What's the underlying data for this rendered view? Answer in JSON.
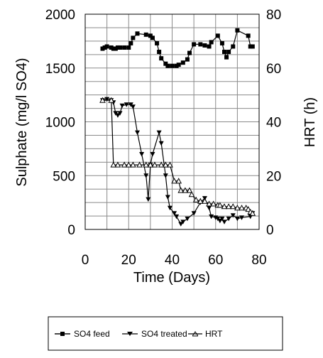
{
  "chart_data": {
    "type": "line",
    "xlabel": "Time (Days)",
    "ylabel": "Sulphate (mg/l SO4)",
    "y2label": "HRT (h)",
    "xlim": [
      0,
      80
    ],
    "ylim": [
      0,
      2000
    ],
    "y2lim": [
      0,
      80
    ],
    "xticks": [
      0,
      20,
      40,
      60,
      80
    ],
    "yticks": [
      0,
      500,
      1000,
      1500,
      2000
    ],
    "y2ticks": [
      0,
      20,
      40,
      60,
      80
    ],
    "grid": true,
    "legend_position": "bottom",
    "series": [
      {
        "name": "SO4 feed",
        "axis": "left",
        "marker": "square",
        "color": "#000000",
        "points": [
          [
            8,
            1680
          ],
          [
            9,
            1690
          ],
          [
            10,
            1700
          ],
          [
            12,
            1690
          ],
          [
            13,
            1680
          ],
          [
            14,
            1680
          ],
          [
            15,
            1690
          ],
          [
            16,
            1690
          ],
          [
            18,
            1690
          ],
          [
            20,
            1690
          ],
          [
            21,
            1730
          ],
          [
            22,
            1780
          ],
          [
            24,
            1820
          ],
          [
            28,
            1810
          ],
          [
            30,
            1800
          ],
          [
            31,
            1780
          ],
          [
            33,
            1730
          ],
          [
            34,
            1650
          ],
          [
            35,
            1590
          ],
          [
            37,
            1540
          ],
          [
            38,
            1520
          ],
          [
            40,
            1520
          ],
          [
            42,
            1520
          ],
          [
            43,
            1530
          ],
          [
            45,
            1550
          ],
          [
            47,
            1580
          ],
          [
            48,
            1640
          ],
          [
            50,
            1720
          ],
          [
            53,
            1720
          ],
          [
            55,
            1710
          ],
          [
            57,
            1700
          ],
          [
            58,
            1740
          ],
          [
            61,
            1800
          ],
          [
            63,
            1730
          ],
          [
            64,
            1650
          ],
          [
            65,
            1600
          ],
          [
            66,
            1650
          ],
          [
            68,
            1700
          ],
          [
            70,
            1850
          ],
          [
            75,
            1800
          ],
          [
            76,
            1700
          ],
          [
            77,
            1700
          ]
        ]
      },
      {
        "name": "SO4 treated",
        "axis": "left",
        "marker": "triangle-down",
        "color": "#000000",
        "points": [
          [
            8,
            1200
          ],
          [
            10,
            1210
          ],
          [
            12,
            1200
          ],
          [
            13,
            1180
          ],
          [
            14,
            1080
          ],
          [
            15,
            1060
          ],
          [
            16,
            1080
          ],
          [
            17,
            1150
          ],
          [
            19,
            1160
          ],
          [
            21,
            1160
          ],
          [
            22,
            1140
          ],
          [
            24,
            900
          ],
          [
            26,
            700
          ],
          [
            28,
            500
          ],
          [
            29,
            280
          ],
          [
            30,
            600
          ],
          [
            31,
            700
          ],
          [
            34,
            900
          ],
          [
            35,
            800
          ],
          [
            37,
            500
          ],
          [
            38,
            300
          ],
          [
            39,
            200
          ],
          [
            41,
            150
          ],
          [
            42,
            120
          ],
          [
            44,
            50
          ],
          [
            45,
            70
          ],
          [
            47,
            100
          ],
          [
            50,
            150
          ],
          [
            53,
            250
          ],
          [
            55,
            290
          ],
          [
            57,
            200
          ],
          [
            58,
            120
          ],
          [
            60,
            110
          ],
          [
            61,
            100
          ],
          [
            62,
            80
          ],
          [
            63,
            100
          ],
          [
            64,
            70
          ],
          [
            66,
            100
          ],
          [
            68,
            130
          ],
          [
            70,
            100
          ],
          [
            72,
            110
          ],
          [
            76,
            120
          ],
          [
            77,
            150
          ]
        ]
      },
      {
        "name": "HRT",
        "axis": "right",
        "marker": "triangle-up",
        "color": "#000000",
        "points": [
          [
            8,
            48
          ],
          [
            12,
            48
          ],
          [
            13,
            24
          ],
          [
            15,
            24
          ],
          [
            18,
            24
          ],
          [
            20,
            24
          ],
          [
            22,
            24
          ],
          [
            25,
            24
          ],
          [
            28,
            24
          ],
          [
            30,
            24
          ],
          [
            32,
            24
          ],
          [
            35,
            24
          ],
          [
            37,
            24
          ],
          [
            39,
            24
          ],
          [
            41,
            18
          ],
          [
            43,
            18
          ],
          [
            44,
            14.5
          ],
          [
            46,
            14.5
          ],
          [
            48,
            14.5
          ],
          [
            49,
            13
          ],
          [
            51,
            11
          ],
          [
            53,
            10.5
          ],
          [
            55,
            10.5
          ],
          [
            57,
            9.5
          ],
          [
            59,
            9.5
          ],
          [
            61,
            9
          ],
          [
            62,
            9
          ],
          [
            64,
            8.5
          ],
          [
            66,
            8.5
          ],
          [
            68,
            8.5
          ],
          [
            70,
            8
          ],
          [
            72,
            8
          ],
          [
            74,
            8
          ],
          [
            75,
            7.5
          ],
          [
            76,
            6.5
          ],
          [
            77,
            6
          ]
        ]
      }
    ]
  }
}
